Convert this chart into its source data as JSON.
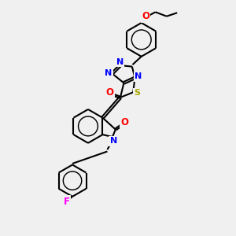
{
  "background_color": "#f0f0f0",
  "atom_colors": {
    "N": "#0000ff",
    "O": "#ff0000",
    "S": "#aaaa00",
    "F": "#ff00ff",
    "C": "#000000"
  },
  "bond_color": "#000000",
  "bond_width": 1.5,
  "figsize": [
    3.0,
    3.0
  ],
  "dpi": 100
}
